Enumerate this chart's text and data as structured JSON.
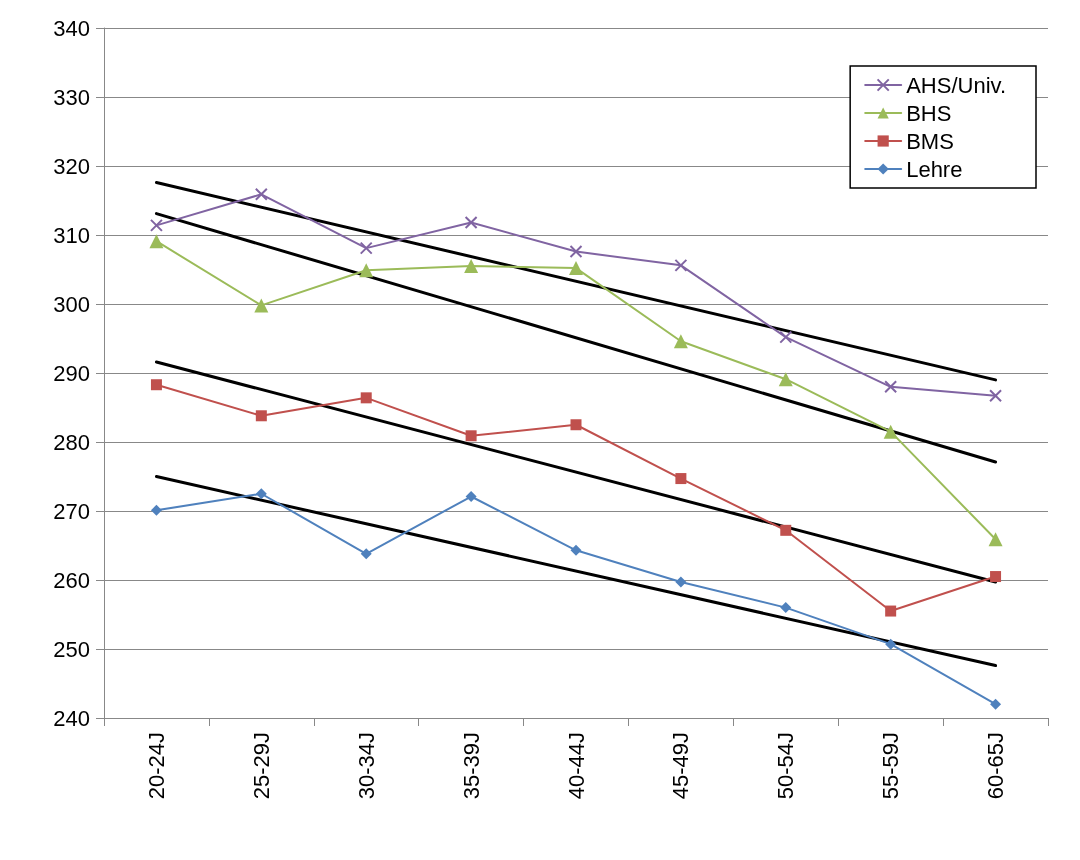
{
  "chart_data": {
    "type": "line",
    "categories": [
      "20-24J",
      "25-29J",
      "30-34J",
      "35-39J",
      "40-44J",
      "45-49J",
      "50-54J",
      "55-59J",
      "60-65J"
    ],
    "series": [
      {
        "name": "AHS/Univ.",
        "color": "#8064a2",
        "marker": "cross",
        "values": [
          311.4,
          315.9,
          308.1,
          311.8,
          307.6,
          305.6,
          295.2,
          288.0,
          286.7
        ]
      },
      {
        "name": "BHS",
        "color": "#9bbb59",
        "marker": "triangle",
        "values": [
          309.1,
          299.8,
          304.9,
          305.5,
          305.2,
          294.6,
          289.1,
          281.5,
          265.9
        ]
      },
      {
        "name": "BMS",
        "color": "#c0504d",
        "marker": "square",
        "values": [
          288.3,
          283.8,
          286.4,
          280.9,
          282.5,
          274.7,
          267.2,
          255.5,
          260.5
        ]
      },
      {
        "name": "Lehre",
        "color": "#4f81bd",
        "marker": "diamond",
        "values": [
          270.1,
          272.5,
          263.8,
          272.1,
          264.3,
          259.7,
          256.0,
          250.7,
          242.0
        ]
      },
      {
        "color": "#000000",
        "marker": "none",
        "values": [
          317.6,
          null,
          null,
          null,
          null,
          null,
          null,
          null,
          289.0
        ]
      },
      {
        "color": "#000000",
        "marker": "none",
        "values": [
          313.1,
          null,
          null,
          null,
          null,
          null,
          null,
          null,
          277.1
        ]
      },
      {
        "color": "#000000",
        "marker": "none",
        "values": [
          291.6,
          null,
          null,
          null,
          null,
          null,
          null,
          null,
          259.7
        ]
      },
      {
        "color": "#000000",
        "marker": "none",
        "values": [
          275.0,
          null,
          null,
          null,
          null,
          null,
          null,
          null,
          247.6
        ]
      }
    ],
    "ylim": [
      240,
      340
    ],
    "yticks": [
      240,
      250,
      260,
      270,
      280,
      290,
      300,
      310,
      320,
      330,
      340
    ],
    "grid": "y",
    "legend": "top right",
    "line_style": "solid"
  }
}
